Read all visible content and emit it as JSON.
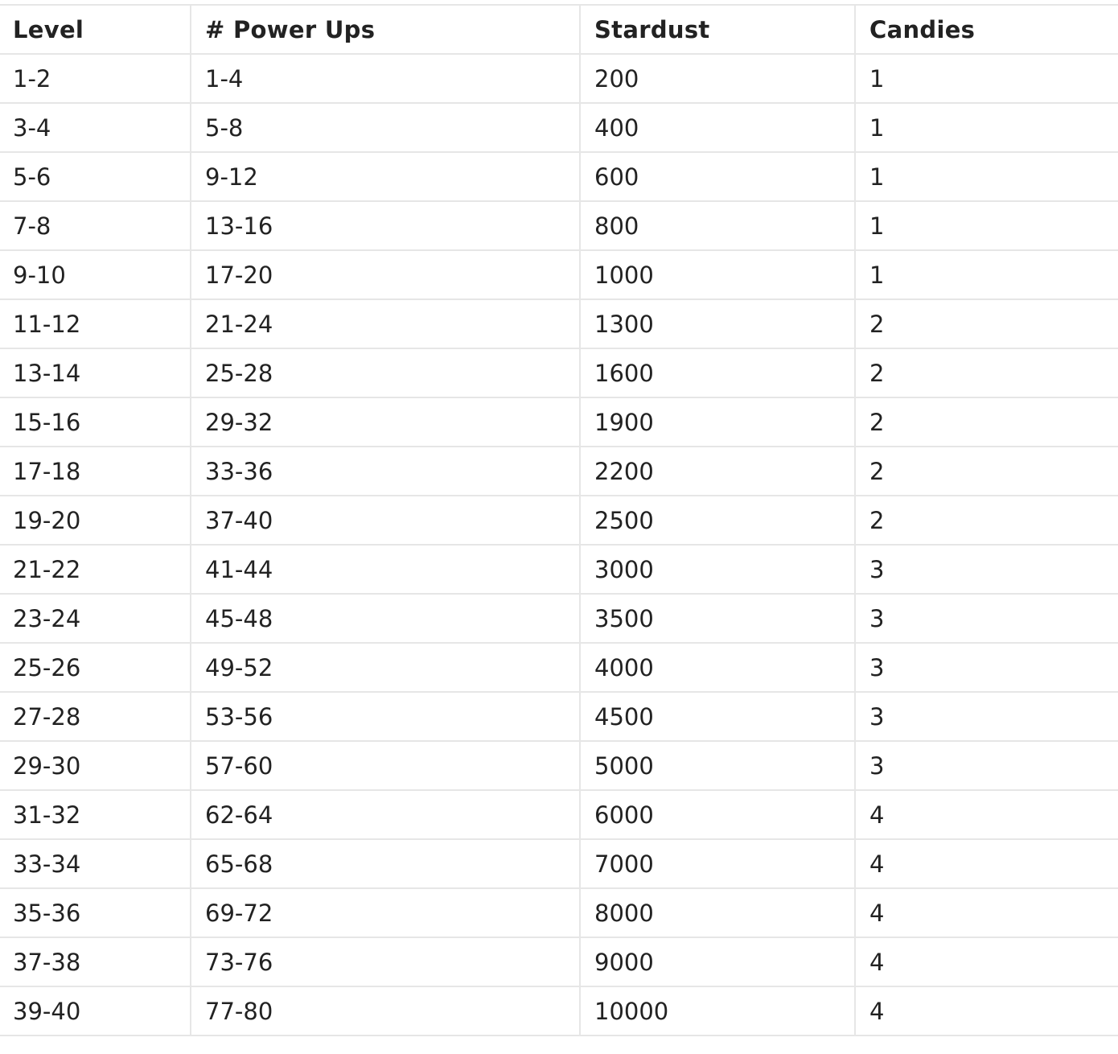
{
  "table": {
    "columns": [
      "Level",
      "# Power Ups",
      "Stardust",
      "Candies"
    ],
    "rows": [
      [
        "1-2",
        "1-4",
        "200",
        "1"
      ],
      [
        "3-4",
        "5-8",
        "400",
        "1"
      ],
      [
        "5-6",
        "9-12",
        "600",
        "1"
      ],
      [
        "7-8",
        "13-16",
        "800",
        "1"
      ],
      [
        "9-10",
        "17-20",
        "1000",
        "1"
      ],
      [
        "11-12",
        "21-24",
        "1300",
        "2"
      ],
      [
        "13-14",
        "25-28",
        "1600",
        "2"
      ],
      [
        "15-16",
        "29-32",
        "1900",
        "2"
      ],
      [
        "17-18",
        "33-36",
        "2200",
        "2"
      ],
      [
        "19-20",
        "37-40",
        "2500",
        "2"
      ],
      [
        "21-22",
        "41-44",
        "3000",
        "3"
      ],
      [
        "23-24",
        "45-48",
        "3500",
        "3"
      ],
      [
        "25-26",
        "49-52",
        "4000",
        "3"
      ],
      [
        "27-28",
        "53-56",
        "4500",
        "3"
      ],
      [
        "29-30",
        "57-60",
        "5000",
        "3"
      ],
      [
        "31-32",
        "62-64",
        "6000",
        "4"
      ],
      [
        "33-34",
        "65-68",
        "7000",
        "4"
      ],
      [
        "35-36",
        "69-72",
        "8000",
        "4"
      ],
      [
        "37-38",
        "73-76",
        "9000",
        "4"
      ],
      [
        "39-40",
        "77-80",
        "10000",
        "4"
      ]
    ]
  }
}
